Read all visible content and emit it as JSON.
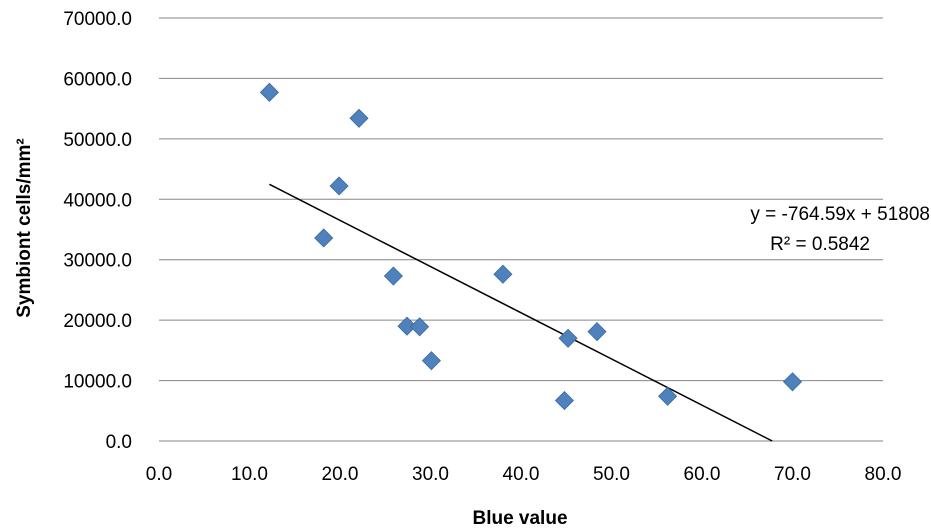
{
  "chart_data": {
    "type": "scatter",
    "title": "",
    "xlabel": "Blue value",
    "ylabel": "Symbiont cells/mm²",
    "xlim": [
      0,
      80
    ],
    "ylim": [
      0,
      70000
    ],
    "x_ticks": [
      "0.0",
      "10.0",
      "20.0",
      "30.0",
      "40.0",
      "50.0",
      "60.0",
      "70.0",
      "80.0"
    ],
    "y_ticks": [
      "0.0",
      "10000.0",
      "20000.0",
      "30000.0",
      "40000.0",
      "50000.0",
      "60000.0",
      "70000.0"
    ],
    "x_tick_values": [
      0,
      10,
      20,
      30,
      40,
      50,
      60,
      70,
      80
    ],
    "y_tick_values": [
      0,
      10000,
      20000,
      30000,
      40000,
      50000,
      60000,
      70000
    ],
    "grid": "horizontal",
    "marker_color": "#4F81BD",
    "marker_shape": "diamond",
    "series": [
      {
        "points": [
          {
            "x": 12.2,
            "y": 57700
          },
          {
            "x": 18.2,
            "y": 33600
          },
          {
            "x": 19.9,
            "y": 42200
          },
          {
            "x": 22.1,
            "y": 53400
          },
          {
            "x": 25.9,
            "y": 27300
          },
          {
            "x": 27.4,
            "y": 19000
          },
          {
            "x": 28.8,
            "y": 18900
          },
          {
            "x": 30.1,
            "y": 13300
          },
          {
            "x": 38.0,
            "y": 27600
          },
          {
            "x": 44.8,
            "y": 6700
          },
          {
            "x": 45.2,
            "y": 17000
          },
          {
            "x": 48.4,
            "y": 18100
          },
          {
            "x": 56.2,
            "y": 7400
          },
          {
            "x": 70.0,
            "y": 9800
          }
        ]
      }
    ],
    "trendline": {
      "slope": -764.59,
      "intercept": 51808,
      "x_range": [
        12.2,
        67.76
      ],
      "color": "#000000",
      "equation_label": "y = -764.59x + 51808",
      "r2_label": "R² = 0.5842"
    }
  }
}
